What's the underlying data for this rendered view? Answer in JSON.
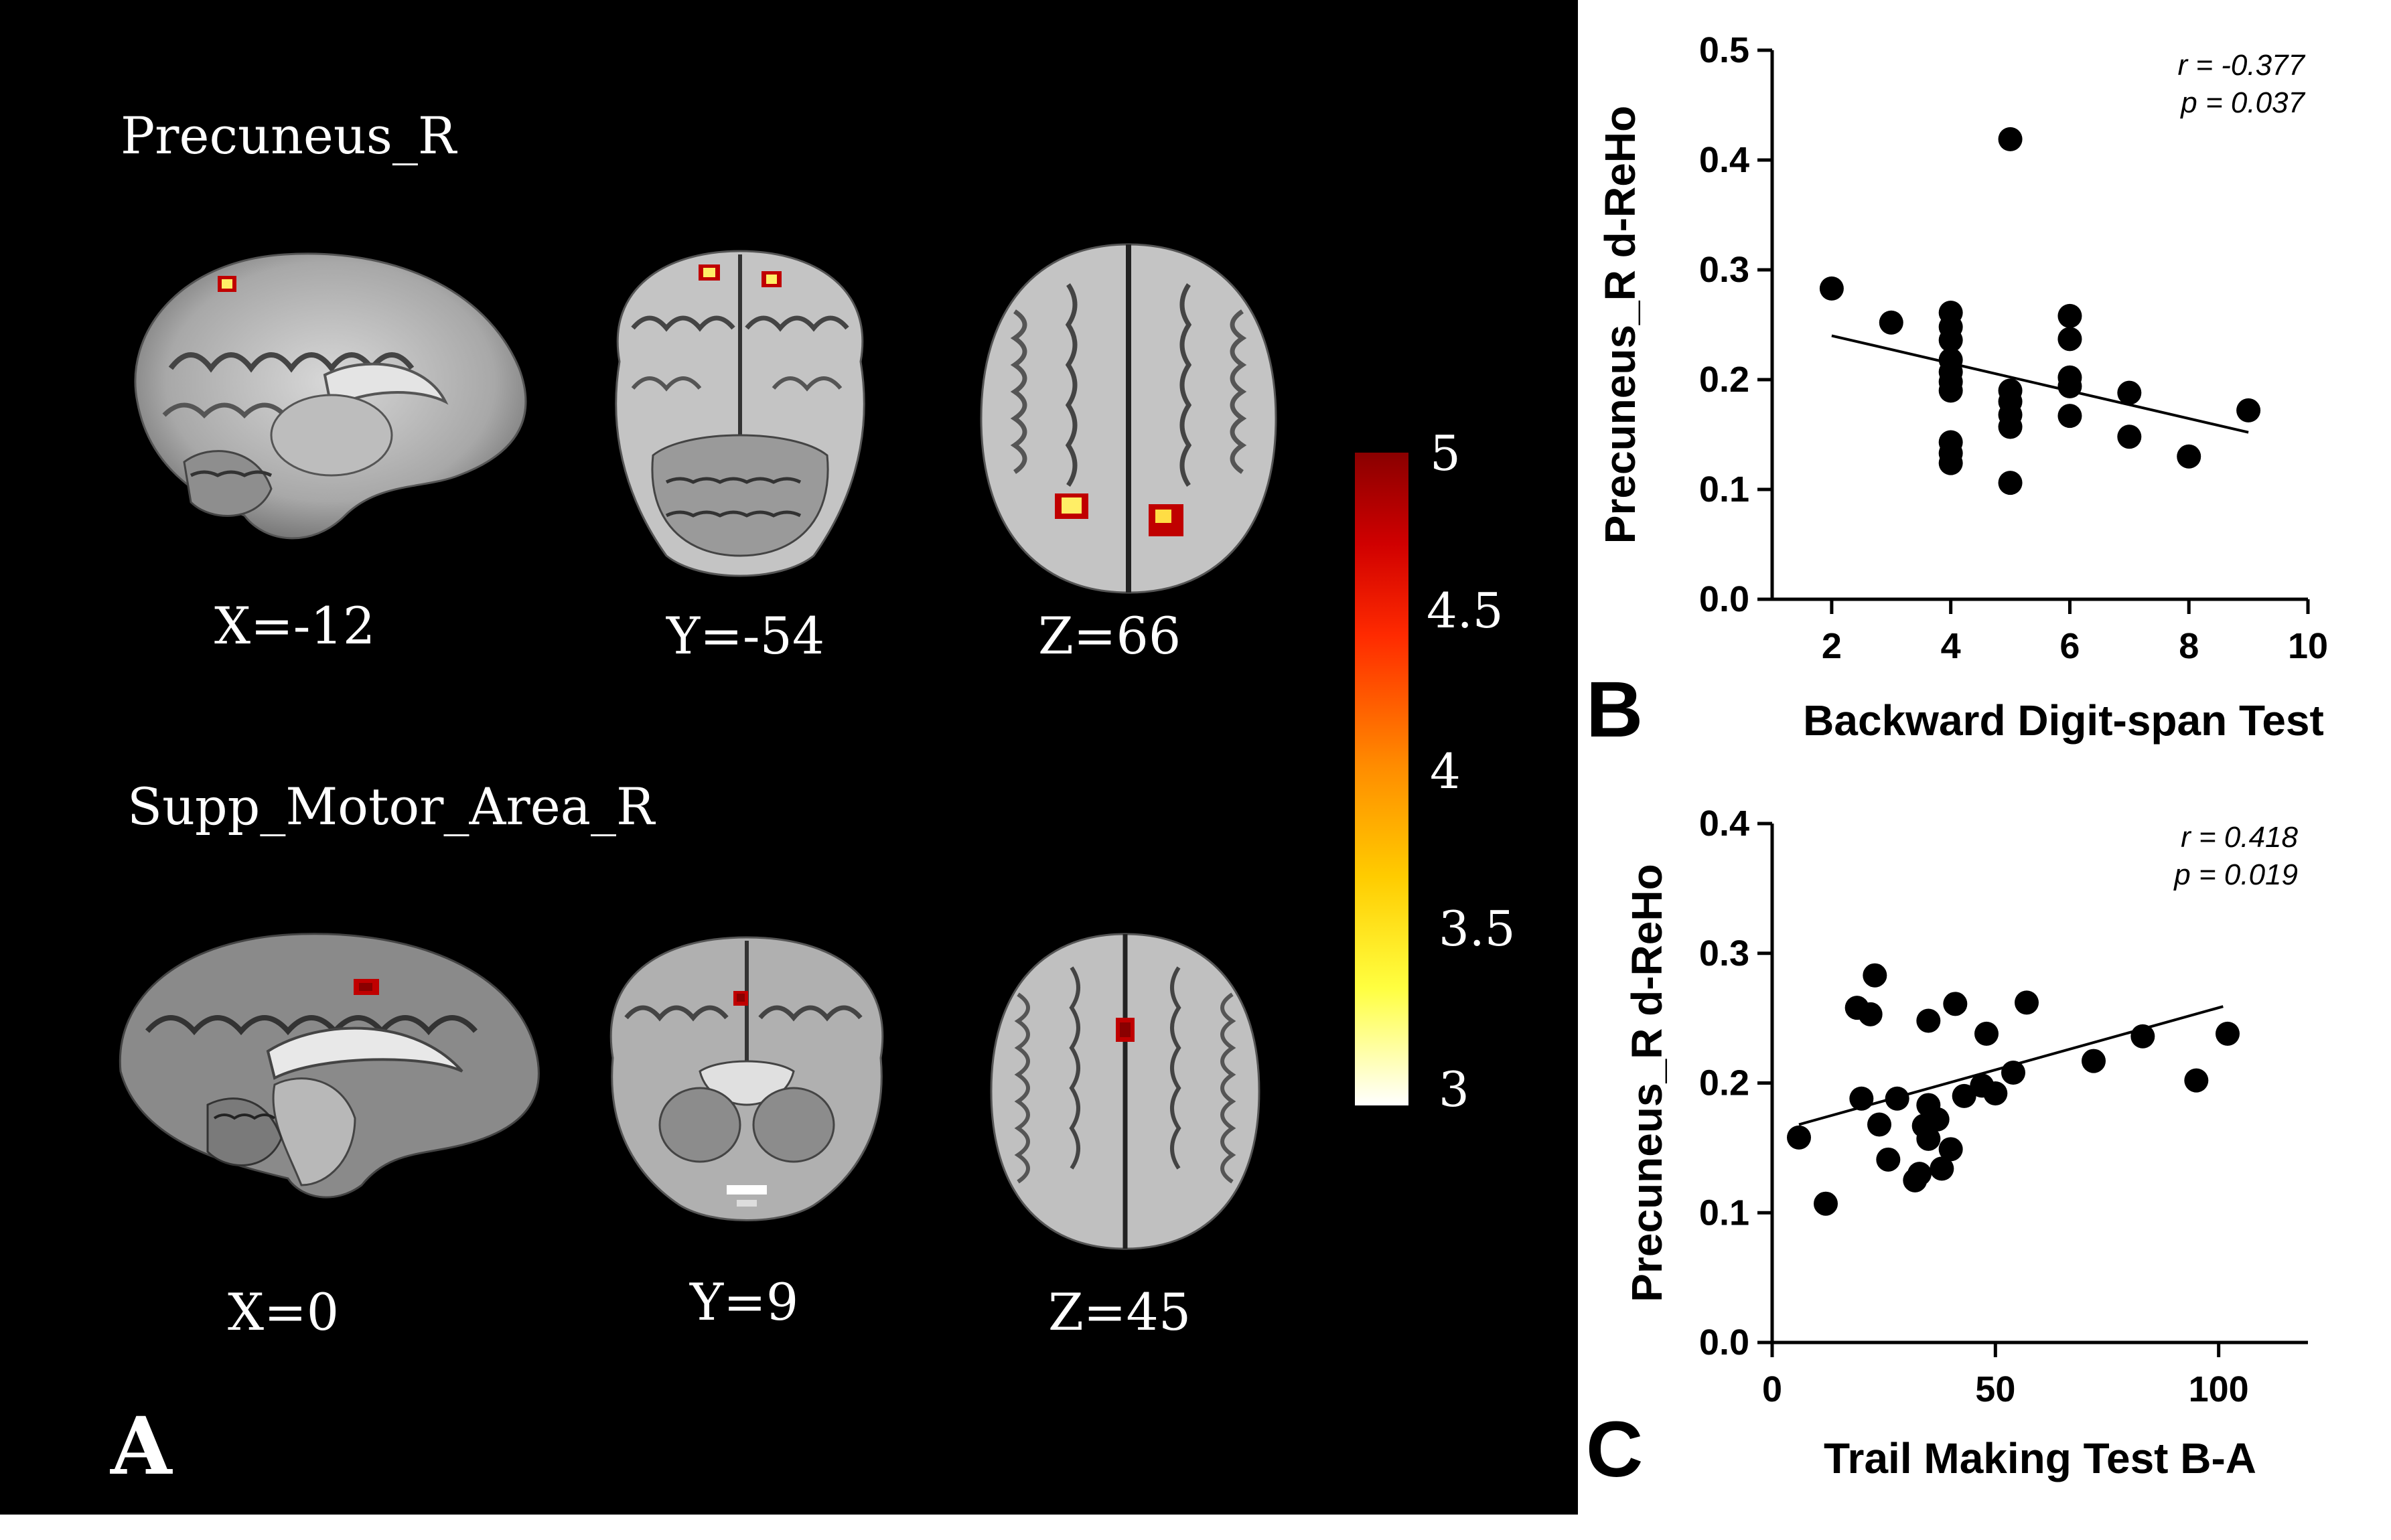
{
  "panel_a": {
    "letter": "A",
    "rows": [
      {
        "region": "Precuneus_R",
        "coords": [
          "X=-12",
          "Y=-54",
          "Z=66"
        ]
      },
      {
        "region": "Supp_Motor_Area_R",
        "coords": [
          "X=0",
          "Y=9",
          "Z=45"
        ]
      }
    ],
    "colorbar": {
      "min": 3,
      "max": 5,
      "ticks": [
        "5",
        "4.5",
        "4",
        "3.5",
        "3"
      ]
    },
    "colors": {
      "background": "#000000",
      "brain_gray": "#9a9a9a",
      "activation_core": "#ffee66",
      "activation_edge": "#c00000"
    }
  },
  "chart_data": [
    {
      "panel_letter": "B",
      "type": "scatter",
      "xlabel": "Backward Digit-span Test",
      "ylabel": "Precuneus_R d-ReHo",
      "xlim": [
        1,
        10
      ],
      "ylim": [
        0,
        0.5
      ],
      "xticks": [
        2,
        4,
        6,
        8,
        10
      ],
      "xtick_labels": [
        "2",
        "4",
        "6",
        "8",
        "10"
      ],
      "yticks": [
        0,
        0.1,
        0.2,
        0.3,
        0.4,
        0.5
      ],
      "ytick_labels": [
        "0.0",
        "0.1",
        "0.2",
        "0.3",
        "0.4",
        "0.5"
      ],
      "annotation": [
        "r = -0.377",
        "p = 0.037"
      ],
      "points": [
        [
          2,
          0.283
        ],
        [
          3,
          0.252
        ],
        [
          4,
          0.261
        ],
        [
          4,
          0.248
        ],
        [
          4,
          0.236
        ],
        [
          4,
          0.218
        ],
        [
          4,
          0.207
        ],
        [
          4,
          0.198
        ],
        [
          4,
          0.19
        ],
        [
          4,
          0.143
        ],
        [
          4,
          0.133
        ],
        [
          4,
          0.124
        ],
        [
          5,
          0.419
        ],
        [
          5,
          0.19
        ],
        [
          5,
          0.18
        ],
        [
          5,
          0.168
        ],
        [
          5,
          0.157
        ],
        [
          5,
          0.106
        ],
        [
          6,
          0.258
        ],
        [
          6,
          0.237
        ],
        [
          6,
          0.202
        ],
        [
          6,
          0.194
        ],
        [
          6,
          0.167
        ],
        [
          7,
          0.188
        ],
        [
          7,
          0.148
        ],
        [
          8,
          0.13
        ],
        [
          9,
          0.172
        ]
      ],
      "fit_line": [
        [
          2,
          0.24
        ],
        [
          9,
          0.152
        ]
      ]
    },
    {
      "panel_letter": "C",
      "type": "scatter",
      "xlabel": "Trail Making Test B-A",
      "ylabel": "Precuneus_R d-ReHo",
      "xlim": [
        0,
        120
      ],
      "ylim": [
        0,
        0.4
      ],
      "xticks": [
        0,
        50,
        100
      ],
      "xtick_labels": [
        "0",
        "50",
        "100"
      ],
      "yticks": [
        0,
        0.1,
        0.2,
        0.3,
        0.4
      ],
      "ytick_labels": [
        "0.0",
        "0.1",
        "0.2",
        "0.3",
        "0.4"
      ],
      "annotation": [
        "r = 0.418",
        "p = 0.019"
      ],
      "points": [
        [
          6,
          0.158
        ],
        [
          12,
          0.107
        ],
        [
          19,
          0.258
        ],
        [
          20,
          0.188
        ],
        [
          22,
          0.253
        ],
        [
          23,
          0.283
        ],
        [
          24,
          0.168
        ],
        [
          26,
          0.141
        ],
        [
          28,
          0.188
        ],
        [
          32,
          0.125
        ],
        [
          33,
          0.13
        ],
        [
          34,
          0.167
        ],
        [
          35,
          0.157
        ],
        [
          35,
          0.183
        ],
        [
          35,
          0.248
        ],
        [
          37,
          0.172
        ],
        [
          38,
          0.134
        ],
        [
          40,
          0.149
        ],
        [
          41,
          0.261
        ],
        [
          43,
          0.19
        ],
        [
          47,
          0.198
        ],
        [
          48,
          0.238
        ],
        [
          50,
          0.192
        ],
        [
          54,
          0.208
        ],
        [
          57,
          0.262
        ],
        [
          72,
          0.217
        ],
        [
          83,
          0.236
        ],
        [
          95,
          0.202
        ],
        [
          102,
          0.238
        ]
      ],
      "fit_line": [
        [
          6,
          0.168
        ],
        [
          101,
          0.259
        ]
      ]
    }
  ]
}
